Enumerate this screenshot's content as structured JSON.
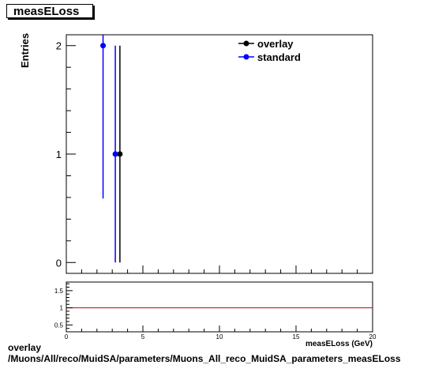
{
  "title": "measELoss",
  "footer": {
    "line1": "overlay",
    "line2": "/Muons/All/reco/MuidSA/parameters/Muons_All_reco_MuidSA_parameters_measELoss"
  },
  "chart_data": [
    {
      "type": "scatter",
      "title": "measELoss",
      "ylabel": "Entries",
      "xlim": [
        0,
        20
      ],
      "ylim": [
        -0.1,
        2.1
      ],
      "y_ticks": [
        "0",
        "1",
        "2"
      ],
      "legend_placement": "top-right",
      "series": [
        {
          "name": "overlay",
          "color": "#000000",
          "points": [
            {
              "x": 3.5,
              "y": 1,
              "ylo": 0,
              "yhi": 2
            }
          ]
        },
        {
          "name": "standard",
          "color": "#0000ff",
          "points": [
            {
              "x": 2.4,
              "y": 2,
              "ylo": 0.59,
              "yhi": 2.1
            },
            {
              "x": 3.2,
              "y": 1,
              "ylo": 0,
              "yhi": 2
            }
          ]
        }
      ]
    },
    {
      "type": "line",
      "xlabel": "measELoss (GeV)",
      "xlim": [
        0,
        20
      ],
      "ylim": [
        0.3,
        1.75
      ],
      "x_ticks": [
        "0",
        "5",
        "10",
        "15",
        "20"
      ],
      "y_ticks": [
        "0.5",
        "1",
        "1.5"
      ],
      "reference_line": {
        "y": 1,
        "color": "#cc0000"
      }
    }
  ]
}
